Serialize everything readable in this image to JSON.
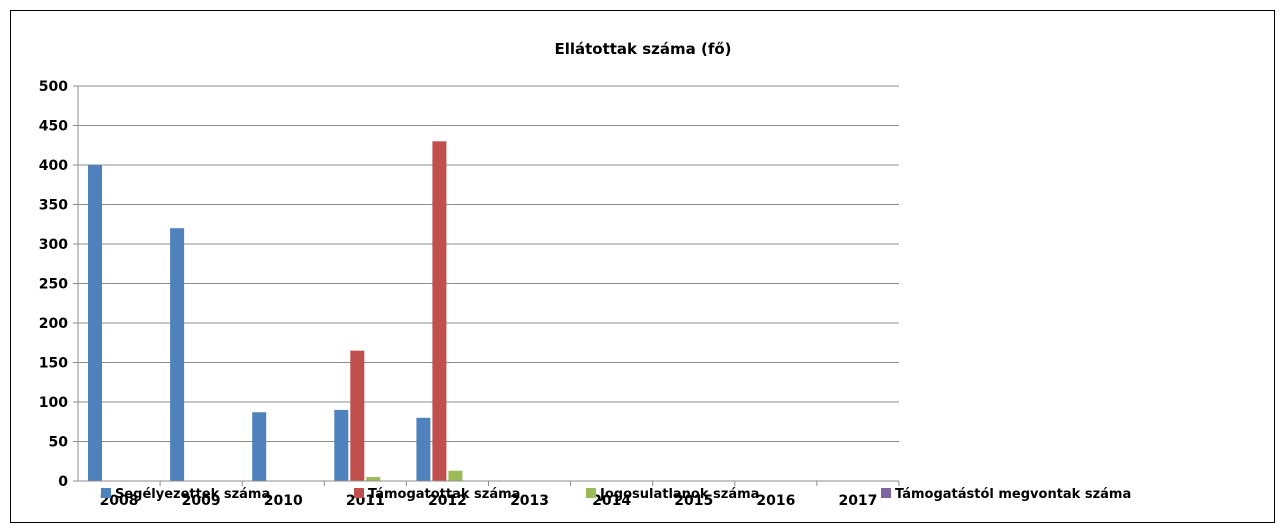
{
  "chart_data": {
    "type": "bar",
    "title": "Ellátottak száma (fő)",
    "xlabel": "",
    "ylabel": "",
    "categories": [
      "2008",
      "2009",
      "2010",
      "2011",
      "2012",
      "2013",
      "2014",
      "2015",
      "2016",
      "2017"
    ],
    "ylim": [
      0,
      500
    ],
    "yticks": [
      0,
      50,
      100,
      150,
      200,
      250,
      300,
      350,
      400,
      450,
      500
    ],
    "grid": true,
    "legend_position": "bottom",
    "series": [
      {
        "name": "Segélyezettek száma",
        "color": "#4f81bd",
        "values": [
          400,
          320,
          87,
          90,
          80,
          null,
          null,
          null,
          null,
          null
        ]
      },
      {
        "name": "Támogatottak száma",
        "color": "#c0504d",
        "values": [
          null,
          null,
          null,
          165,
          430,
          null,
          null,
          null,
          null,
          null
        ]
      },
      {
        "name": "Jogosulatlanok száma",
        "color": "#9bbb59",
        "values": [
          null,
          null,
          null,
          5,
          13,
          null,
          null,
          null,
          null,
          null
        ]
      },
      {
        "name": "Támogatástól megvontak száma",
        "color": "#8064a2",
        "values": [
          null,
          null,
          null,
          null,
          null,
          null,
          null,
          null,
          null,
          null
        ]
      }
    ]
  }
}
